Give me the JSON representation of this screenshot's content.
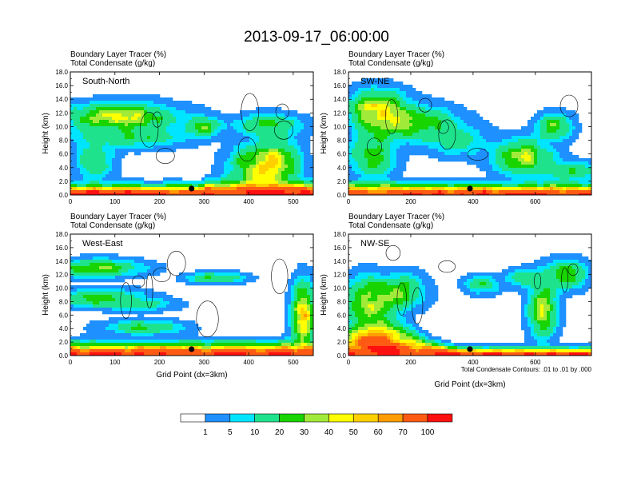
{
  "chart_data": {
    "type": "heatmap",
    "title": "2013-09-17_06:00:00",
    "panels": [
      {
        "name": "South-North",
        "subtitle_line1": "Boundary Layer Tracer    (%)",
        "subtitle_line2": "Total Condensate    (g/kg)",
        "ylabel": "Height (km)",
        "xlabel": "",
        "x_ticks": [
          "0",
          "100",
          "200",
          "300",
          "400",
          "500"
        ],
        "y_ticks": [
          "0.0",
          "2.0",
          "4.0",
          "6.0",
          "8.0",
          "10.0",
          "12.0",
          "14.0",
          "16.0",
          "18.0"
        ],
        "xlim": [
          0,
          545
        ],
        "ylim": [
          0,
          18
        ],
        "marker_x": 272
      },
      {
        "name": "SW-NE",
        "subtitle_line1": "Boundary Layer Tracer    (%)",
        "subtitle_line2": "Total Condensate    (g/kg)",
        "ylabel": "Height (km)",
        "xlabel": "",
        "x_ticks": [
          "0",
          "200",
          "400",
          "600"
        ],
        "y_ticks": [
          "0.0",
          "2.0",
          "4.0",
          "6.0",
          "8.0",
          "10.0",
          "12.0",
          "14.0",
          "16.0",
          "18.0"
        ],
        "xlim": [
          0,
          780
        ],
        "ylim": [
          0,
          18
        ],
        "marker_x": 390
      },
      {
        "name": "West-East",
        "subtitle_line1": "Boundary Layer Tracer    (%)",
        "subtitle_line2": "Total Condensate    (g/kg)",
        "ylabel": "Height (km)",
        "xlabel": "Grid Point (dx=3km)",
        "x_ticks": [
          "0",
          "100",
          "200",
          "300",
          "400",
          "500"
        ],
        "y_ticks": [
          "0.0",
          "2.0",
          "4.0",
          "6.0",
          "8.0",
          "10.0",
          "12.0",
          "14.0",
          "16.0",
          "18.0"
        ],
        "xlim": [
          0,
          545
        ],
        "ylim": [
          0,
          18
        ],
        "marker_x": 272
      },
      {
        "name": "NW-SE",
        "subtitle_line1": "Boundary Layer Tracer    (%)",
        "subtitle_line2": "Total Condensate    (g/kg)",
        "ylabel": "Height (km)",
        "xlabel": "Grid Point (dx=3km)",
        "x_ticks": [
          "0",
          "200",
          "400",
          "600"
        ],
        "y_ticks": [
          "0.0",
          "2.0",
          "4.0",
          "6.0",
          "8.0",
          "10.0",
          "12.0",
          "14.0",
          "16.0",
          "18.0"
        ],
        "xlim": [
          0,
          780
        ],
        "ylim": [
          0,
          18
        ],
        "marker_x": 390,
        "note": "Total Condensate Contours: .01 to .01 by .000"
      }
    ],
    "colorbar": {
      "labels": [
        "1",
        "5",
        "10",
        "20",
        "30",
        "40",
        "50",
        "60",
        "70",
        "100"
      ],
      "colors": [
        "#ffffff",
        "#1e90ff",
        "#00e5ff",
        "#1ee38c",
        "#18d400",
        "#a2ea3a",
        "#ffff00",
        "#ffd000",
        "#ff9c00",
        "#ff5a14",
        "#ff1010"
      ]
    },
    "grid": false
  }
}
